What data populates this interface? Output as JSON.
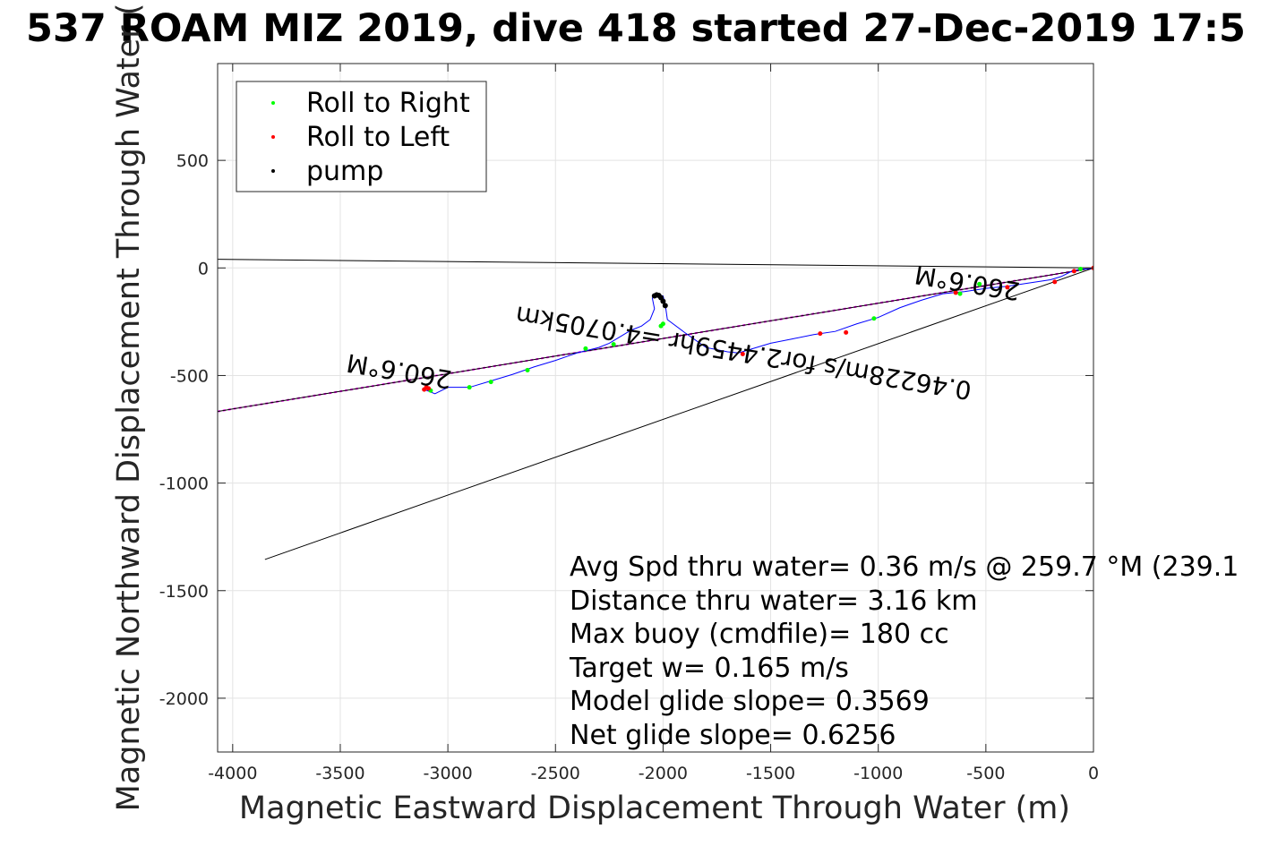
{
  "chart_data": {
    "type": "scatter",
    "title": "537 ROAM MIZ 2019, dive 418 started 27-Dec-2019 17:5",
    "xlabel": "Magnetic Eastward Displacement Through Water (m)",
    "ylabel": "Magnetic Northward Displacement Through Water (",
    "xlim": [
      -4070,
      0
    ],
    "ylim": [
      -2250,
      950
    ],
    "x_ticks": [
      {
        "value": -4000,
        "label": "-4000"
      },
      {
        "value": -3500,
        "label": "-3500"
      },
      {
        "value": -3000,
        "label": "-3000"
      },
      {
        "value": -2500,
        "label": "-2500"
      },
      {
        "value": -2000,
        "label": "-2000"
      },
      {
        "value": -1500,
        "label": "-1500"
      },
      {
        "value": -1000,
        "label": "-1000"
      },
      {
        "value": -500,
        "label": "-500"
      },
      {
        "value": 0,
        "label": "0"
      }
    ],
    "y_ticks": [
      {
        "value": 500,
        "label": "500"
      },
      {
        "value": 0,
        "label": "0"
      },
      {
        "value": -500,
        "label": "-500"
      },
      {
        "value": -1000,
        "label": "-1000"
      },
      {
        "value": -1500,
        "label": "-1500"
      },
      {
        "value": -2000,
        "label": "-2000"
      }
    ],
    "grid": true,
    "legend_position": "top-left",
    "legend": [
      {
        "label": "Roll to Right",
        "color": "#00ff00"
      },
      {
        "label": "Roll to Left",
        "color": "#ff0000"
      },
      {
        "label": "pump",
        "color": "#000000"
      }
    ],
    "series": [
      {
        "name": "Roll to Right",
        "color": "#00ff00",
        "x": [
          -3080,
          -2900,
          -2800,
          -2630,
          -2360,
          -2230,
          -2010,
          -2000,
          -1020,
          -620,
          -530,
          -60
        ],
        "y": [
          -570,
          -555,
          -530,
          -475,
          -375,
          -355,
          -270,
          -260,
          -235,
          -120,
          -75,
          -5
        ]
      },
      {
        "name": "Roll to Left",
        "color": "#ff0000",
        "x": [
          -3110,
          -3100,
          -3090,
          -1630,
          -1270,
          -1150,
          -640,
          -400,
          -180,
          -90,
          0
        ],
        "y": [
          -565,
          -555,
          -560,
          -400,
          -305,
          -300,
          -115,
          -90,
          -65,
          -15,
          0
        ]
      },
      {
        "name": "pump",
        "color": "#000000",
        "x": [
          -2040,
          -2030,
          -2020,
          -2010,
          -2000,
          -1990
        ],
        "y": [
          -130,
          -125,
          -128,
          -138,
          -155,
          -175
        ]
      },
      {
        "name": "",
        "color": "#0000ff",
        "x": [
          -3110,
          -3060,
          -3000,
          -2900,
          -2800,
          -2700,
          -2600,
          -2500,
          -2400,
          -2300,
          -2250,
          -2200,
          -2150,
          -2100,
          -2060,
          -2040,
          -2050,
          -2030,
          -2000,
          -1990,
          -1980,
          -1900,
          -1800,
          -1700,
          -1650,
          -1600,
          -1500,
          -1400,
          -1300,
          -1200,
          -1100,
          -1000,
          -900,
          -800,
          -700,
          -600,
          -500,
          -400,
          -300,
          -200,
          -150,
          -100,
          -60,
          -30,
          0
        ],
        "y": [
          -565,
          -585,
          -555,
          -555,
          -525,
          -495,
          -460,
          -430,
          -395,
          -370,
          -350,
          -320,
          -290,
          -270,
          -240,
          -190,
          -140,
          -125,
          -130,
          -170,
          -240,
          -300,
          -370,
          -390,
          -395,
          -380,
          -350,
          -330,
          -310,
          -295,
          -260,
          -230,
          -185,
          -150,
          -120,
          -110,
          -95,
          -85,
          -70,
          -55,
          -40,
          -15,
          -5,
          -5,
          0
        ]
      }
    ],
    "lines": [
      {
        "color": "#ff00ff",
        "dashed": true,
        "x": [
          -4070,
          0
        ],
        "y": [
          -667,
          0
        ]
      },
      {
        "color": "#000000",
        "dashed": false,
        "x": [
          -4070,
          0
        ],
        "y": [
          -667,
          0
        ]
      },
      {
        "color": "#000000",
        "dashed": false,
        "x": [
          -4070,
          0
        ],
        "y": [
          40,
          0
        ]
      },
      {
        "color": "#000000",
        "dashed": false,
        "x": [
          -3850,
          0
        ],
        "y": [
          -1355,
          0
        ]
      }
    ],
    "rotated_labels": [
      {
        "text": "260.6°M",
        "x": -3220,
        "y": -440,
        "angle_deg": 189.5
      },
      {
        "text": "0.46228m/s for2.4459hr =4.0705km",
        "x": -1620,
        "y": -355,
        "angle_deg": 189.5
      },
      {
        "text": "260.6°M",
        "x": -580,
        "y": -30,
        "angle_deg": 189.5
      }
    ],
    "annotations": [
      "Avg Spd thru water=  0.36 m/s @ 259.7 °M (239.1",
      "Distance thru water=  3.16 km",
      "Max buoy (cmdfile)= 180 cc",
      "Target w= 0.165 m/s",
      "Model glide slope= 0.3569",
      "Net glide slope= 0.6256"
    ]
  }
}
